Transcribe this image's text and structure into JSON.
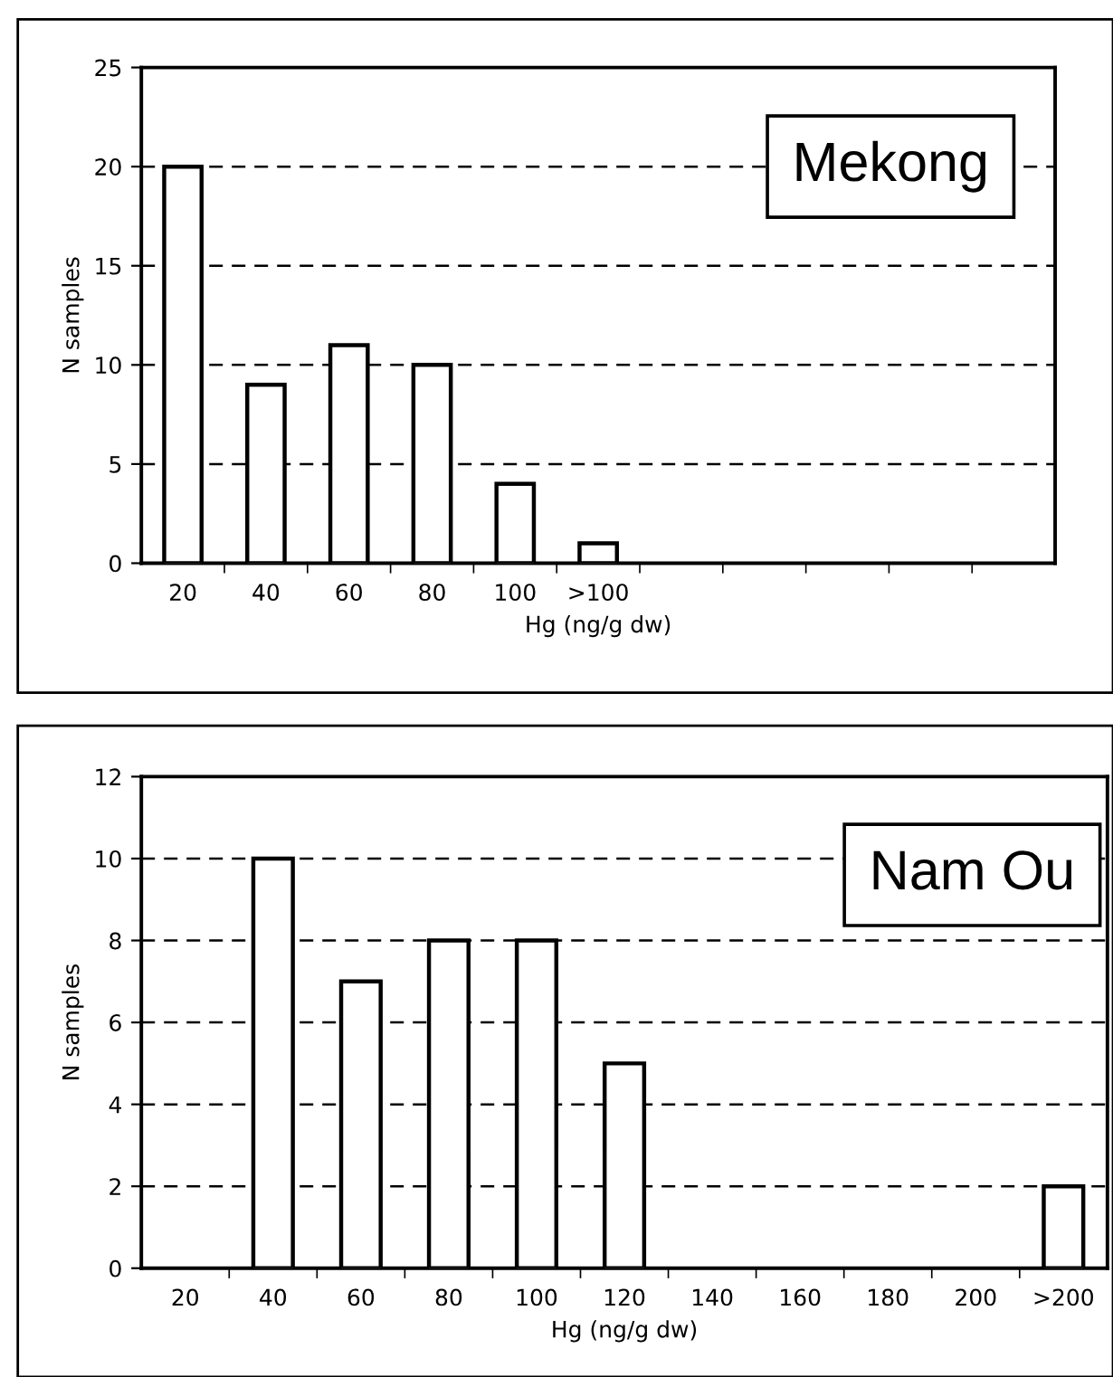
{
  "chart_data": [
    {
      "type": "bar",
      "title": "Mekong",
      "xlabel": "Hg (ng/g dw)",
      "ylabel": "N samples",
      "categories": [
        "20",
        "40",
        "60",
        "80",
        "100",
        ">100",
        null,
        null,
        null,
        null,
        null
      ],
      "values": [
        20,
        9,
        11,
        10,
        4,
        1,
        null,
        null,
        null,
        null,
        null
      ],
      "color": "#ffffff",
      "ylim": [
        0,
        25
      ],
      "yticks": [
        0,
        5,
        10,
        15,
        20,
        25
      ],
      "grid": "y",
      "line_style": "dashed"
    },
    {
      "type": "bar",
      "title": "Nam Ou",
      "xlabel": "Hg (ng/g dw)",
      "ylabel": "N samples",
      "categories": [
        "20",
        "40",
        "60",
        "80",
        "100",
        "120",
        "140",
        "160",
        "180",
        "200",
        ">200"
      ],
      "values": [
        0,
        10,
        7,
        8,
        8,
        5,
        0,
        0,
        0,
        0,
        2
      ],
      "color": "#ffffff",
      "ylim": [
        0,
        12
      ],
      "yticks": [
        0,
        2,
        4,
        6,
        8,
        10,
        12
      ],
      "grid": "y",
      "line_style": "dashed"
    }
  ]
}
